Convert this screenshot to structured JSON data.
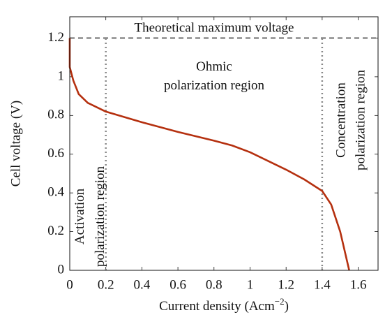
{
  "chart_data": {
    "type": "line",
    "xlabel_parts": [
      "Current density (Acm",
      "−2",
      ")"
    ],
    "ylabel": "Cell voltage (V)",
    "x": [
      0,
      0,
      0.02,
      0.05,
      0.1,
      0.2,
      0.4,
      0.6,
      0.8,
      0.9,
      1.0,
      1.1,
      1.2,
      1.3,
      1.4,
      1.45,
      1.5,
      1.55
    ],
    "series": [
      {
        "name": "Cell voltage",
        "color": "#b5300f",
        "values": [
          1.2,
          1.05,
          0.98,
          0.91,
          0.865,
          0.82,
          0.765,
          0.715,
          0.67,
          0.645,
          0.61,
          0.565,
          0.52,
          0.47,
          0.41,
          0.34,
          0.2,
          0
        ]
      }
    ],
    "hlines": [
      1.2
    ],
    "vlines": [
      0.2,
      1.4
    ],
    "reference_color": "#8a8a8a",
    "annotations": [
      {
        "lines": [
          "Theoretical maximum voltage"
        ]
      },
      {
        "lines": [
          "Ohmic",
          "polarization region"
        ]
      },
      {
        "lines": [
          "Activation",
          "polarization region"
        ]
      },
      {
        "lines": [
          "Concentration",
          "polarization region"
        ]
      }
    ],
    "xlim": [
      0,
      1.71
    ],
    "ylim": [
      0,
      1.31
    ],
    "xticks": [
      0,
      0.2,
      0.4,
      0.6,
      0.8,
      1,
      1.2,
      1.4,
      1.6
    ],
    "yticks": [
      0,
      0.2,
      0.4,
      0.6,
      0.8,
      1,
      1.2
    ]
  }
}
